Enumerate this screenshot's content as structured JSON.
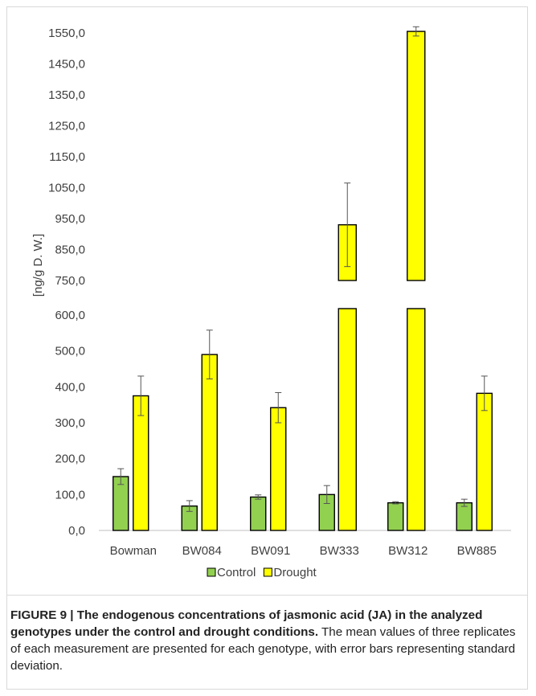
{
  "chart_data": {
    "type": "bar",
    "categories": [
      "Bowman",
      "BW084",
      "BW091",
      "BW333",
      "BW312",
      "BW885"
    ],
    "series": [
      {
        "name": "Control",
        "color": "#92d050",
        "values": [
          150,
          68,
          93,
          100,
          77,
          77
        ],
        "error": [
          22,
          15,
          6,
          25,
          3,
          10
        ]
      },
      {
        "name": "Drought",
        "color": "#ffff00",
        "values": [
          375,
          490,
          342,
          930,
          1555,
          382
        ],
        "error": [
          55,
          68,
          42,
          135,
          15,
          48
        ]
      }
    ],
    "ylabel": "[ng/g D. W.]",
    "yaxis_break": {
      "lower_range": [
        0,
        600
      ],
      "upper_range": [
        750,
        1550
      ]
    },
    "yticks_lower": [
      "0,0",
      "100,0",
      "200,0",
      "300,0",
      "400,0",
      "500,0",
      "600,0"
    ],
    "yticks_upper": [
      "750,0",
      "850,0",
      "950,0",
      "1050,0",
      "1150,0",
      "1250,0",
      "1350,0",
      "1450,0",
      "1550,0"
    ],
    "grid": false,
    "legend_position": "bottom"
  },
  "caption": {
    "title": "FIGURE 9 | The endogenous concentrations of jasmonic acid (JA) in the analyzed genotypes under the control and drought conditions.",
    "body": " The mean values of three replicates of each measurement are presented for each genotype, with error bars representing standard deviation."
  }
}
